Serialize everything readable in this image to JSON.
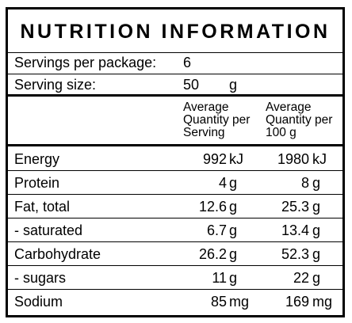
{
  "title": "NUTRITION INFORMATION",
  "servings_per_package": {
    "label": "Servings per package:",
    "value": "6"
  },
  "serving_size": {
    "label": "Serving size:",
    "value": "50",
    "unit": "g"
  },
  "columns": {
    "per_serving": [
      "Average",
      "Quantity per",
      "Serving"
    ],
    "per_100g": [
      "Average",
      "Quantity per",
      "100 g"
    ]
  },
  "rows": [
    {
      "name": "Energy",
      "serving_value": "992",
      "serving_unit": "kJ",
      "per100_value": "1980",
      "per100_unit": "kJ"
    },
    {
      "name": "Protein",
      "serving_value": "4",
      "serving_unit": "g",
      "per100_value": "8",
      "per100_unit": "g"
    },
    {
      "name": "Fat, total",
      "serving_value": "12.6",
      "serving_unit": "g",
      "per100_value": "25.3",
      "per100_unit": "g"
    },
    {
      "name": "- saturated",
      "serving_value": "6.7",
      "serving_unit": "g",
      "per100_value": "13.4",
      "per100_unit": "g"
    },
    {
      "name": "Carbohydrate",
      "serving_value": "26.2",
      "serving_unit": "g",
      "per100_value": "52.3",
      "per100_unit": "g"
    },
    {
      "name": "- sugars",
      "serving_value": "11",
      "serving_unit": "g",
      "per100_value": "22",
      "per100_unit": "g"
    },
    {
      "name": "Sodium",
      "serving_value": "85",
      "serving_unit": "mg",
      "per100_value": "169",
      "per100_unit": "mg"
    }
  ]
}
